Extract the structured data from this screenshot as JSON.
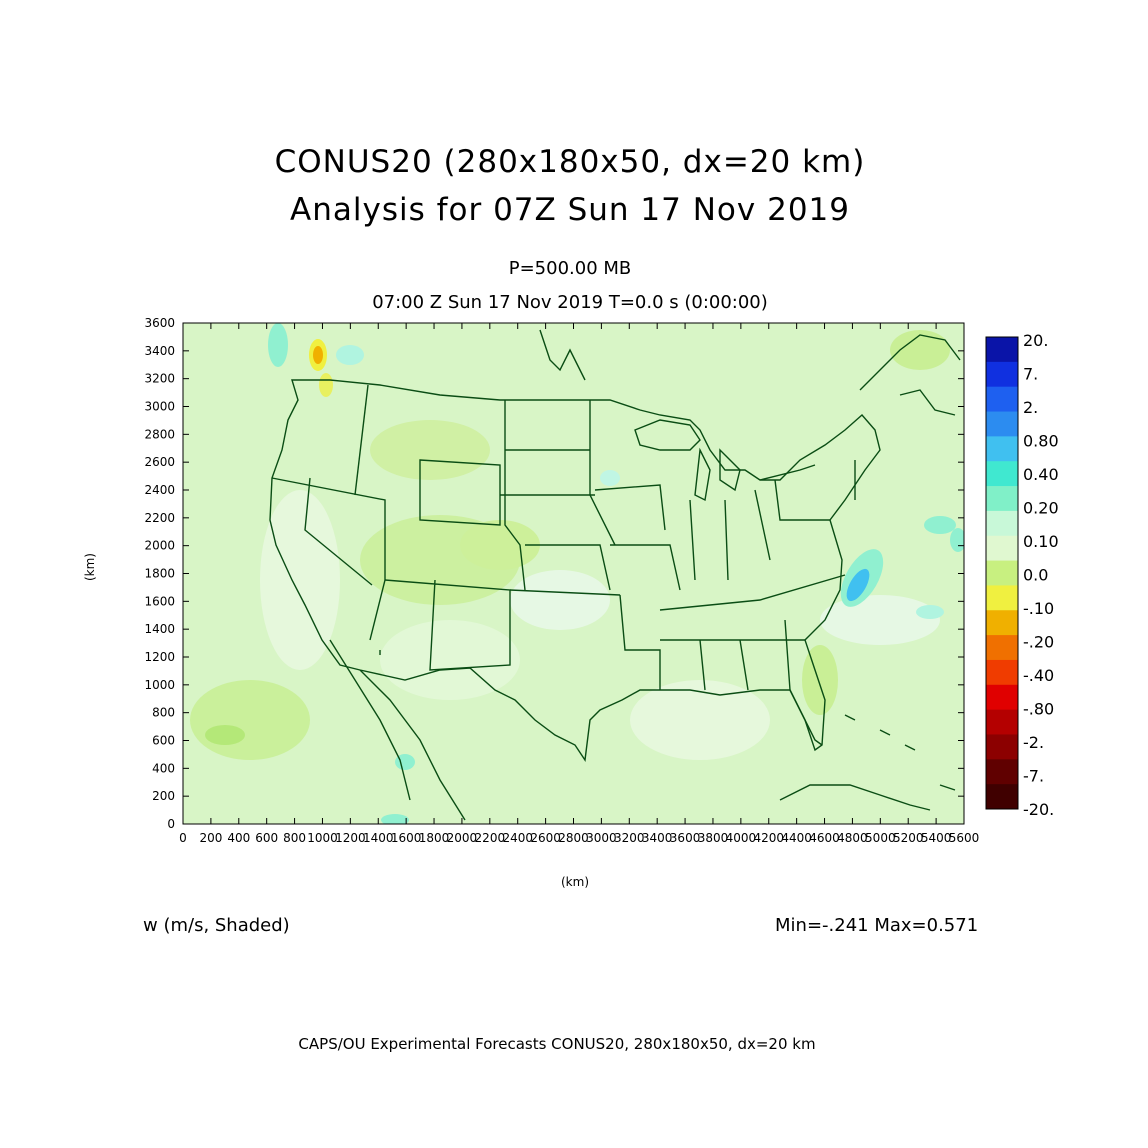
{
  "title": {
    "line1": "CONUS20 (280x180x50, dx=20 km)",
    "line2": "Analysis for 07Z Sun 17 Nov 2019"
  },
  "subtitle": {
    "level": "P=500.00 MB",
    "valid_time": "07:00 Z Sun 17 Nov 2019    T=0.0 s (0:00:00)"
  },
  "field_label": "w (m/s, Shaded)",
  "min_max": "Min=-.241  Max=0.571",
  "footer": "CAPS/OU Experimental Forecasts  CONUS20, 280x180x50, dx=20 km",
  "axes": {
    "xlabel": "(km)",
    "ylabel": "(km)",
    "xticks": [
      "0",
      "200",
      "400",
      "600",
      "800",
      "1000",
      "1200",
      "1400",
      "1600",
      "1800",
      "2000",
      "2200",
      "2400",
      "2600",
      "2800",
      "3000",
      "3200",
      "3400",
      "3600",
      "3800",
      "4000",
      "4200",
      "4400",
      "4600",
      "4800",
      "5000",
      "5200",
      "5400",
      "5600"
    ],
    "yticks": [
      "0",
      "200",
      "400",
      "600",
      "800",
      "1000",
      "1200",
      "1400",
      "1600",
      "1800",
      "2000",
      "2200",
      "2400",
      "2600",
      "2800",
      "3000",
      "3200",
      "3400",
      "3600"
    ]
  },
  "colorbar": {
    "labels": [
      "20.",
      "7.",
      "2.",
      "0.80",
      "0.40",
      "0.20",
      "0.10",
      "0.0",
      "-.10",
      "-.20",
      "-.40",
      "-.80",
      "-2.",
      "-7.",
      "-20."
    ],
    "colors": [
      "#0a14a8",
      "#1030e0",
      "#1e60f0",
      "#2c8cf0",
      "#40c0f0",
      "#40e8d0",
      "#80f0c8",
      "#c8f8d8",
      "#e0f8d0",
      "#c8f080",
      "#f0f040",
      "#f0b000",
      "#f07000",
      "#f03c00",
      "#e00000",
      "#b40000",
      "#8c0000",
      "#600000",
      "#400000"
    ]
  },
  "colors": {
    "map_background": "#d6f5c4",
    "boundary": "#0a4d14"
  }
}
